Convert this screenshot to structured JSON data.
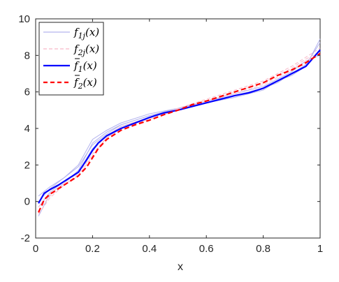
{
  "chart_data": {
    "type": "line",
    "title": "",
    "xlabel": "x",
    "ylabel": "",
    "xlim": [
      0,
      1
    ],
    "ylim": [
      -2,
      10
    ],
    "xticks": [
      "0",
      "0.2",
      "0.4",
      "0.6",
      "0.8",
      "1"
    ],
    "yticks": [
      "-2",
      "0",
      "2",
      "4",
      "6",
      "8",
      "10"
    ],
    "grid": false,
    "legend_position": "top-left",
    "series": [
      {
        "name": "f_{1j}(x)",
        "style": "thin light blue solid (multiple sample curves)",
        "color": "#b3b3ee",
        "x": [
          0.01,
          0.05,
          0.1,
          0.15,
          0.2,
          0.25,
          0.3,
          0.4,
          0.5,
          0.6,
          0.7,
          0.8,
          0.85,
          0.9,
          0.95,
          1.0
        ],
        "samples": [
          [
            -0.8,
            0.4,
            1.0,
            1.7,
            3.2,
            3.8,
            4.2,
            4.7,
            5.0,
            5.4,
            5.8,
            6.2,
            6.6,
            7.0,
            7.5,
            8.7
          ],
          [
            0.3,
            0.8,
            1.3,
            2.0,
            3.4,
            3.9,
            4.3,
            4.8,
            5.1,
            5.5,
            5.9,
            6.3,
            6.7,
            7.1,
            7.7,
            8.0
          ],
          [
            -0.3,
            0.5,
            1.1,
            1.6,
            2.9,
            3.6,
            4.1,
            4.6,
            5.0,
            5.5,
            5.8,
            6.2,
            6.5,
            7.0,
            7.4,
            8.3
          ],
          [
            0.0,
            0.7,
            1.3,
            1.9,
            3.1,
            3.7,
            4.2,
            4.7,
            5.1,
            5.4,
            5.7,
            6.1,
            6.6,
            6.9,
            7.4,
            8.9
          ]
        ]
      },
      {
        "name": "f_{2j}(x)",
        "style": "thin light pink dashed (multiple sample curves)",
        "color": "#f7b8c8",
        "x": [
          0.01,
          0.05,
          0.1,
          0.15,
          0.2,
          0.25,
          0.3,
          0.4,
          0.5,
          0.6,
          0.7,
          0.8,
          0.85,
          0.9,
          0.95,
          1.0
        ],
        "samples": [
          [
            -0.7,
            0.2,
            0.9,
            1.4,
            2.5,
            3.5,
            4.0,
            4.5,
            5.0,
            5.5,
            6.0,
            6.5,
            6.9,
            7.3,
            7.8,
            8.2
          ],
          [
            -0.3,
            0.4,
            1.0,
            1.6,
            2.8,
            3.6,
            4.1,
            4.6,
            5.1,
            5.6,
            6.1,
            6.6,
            7.0,
            7.4,
            7.9,
            8.4
          ],
          [
            -0.5,
            0.3,
            0.9,
            1.5,
            2.6,
            3.5,
            4.0,
            4.6,
            5.0,
            5.5,
            5.9,
            6.4,
            6.8,
            7.2,
            7.7,
            8.1
          ]
        ]
      },
      {
        "name": "̅f_1(x)",
        "style": "solid blue, thick",
        "color": "#0000ff",
        "x": [
          0.01,
          0.03,
          0.05,
          0.08,
          0.1,
          0.15,
          0.18,
          0.2,
          0.22,
          0.25,
          0.3,
          0.35,
          0.4,
          0.45,
          0.5,
          0.55,
          0.6,
          0.65,
          0.7,
          0.75,
          0.8,
          0.85,
          0.9,
          0.95,
          1.0
        ],
        "y": [
          -0.1,
          0.45,
          0.65,
          0.9,
          1.1,
          1.6,
          2.3,
          2.8,
          3.2,
          3.6,
          4.0,
          4.3,
          4.6,
          4.85,
          5.0,
          5.2,
          5.4,
          5.6,
          5.8,
          5.95,
          6.2,
          6.6,
          7.0,
          7.4,
          8.3
        ]
      },
      {
        "name": "̅f_2(x)",
        "style": "dashed red, thick",
        "color": "#ff0000",
        "x": [
          0.01,
          0.03,
          0.05,
          0.08,
          0.1,
          0.15,
          0.18,
          0.2,
          0.22,
          0.25,
          0.3,
          0.35,
          0.4,
          0.45,
          0.5,
          0.55,
          0.6,
          0.65,
          0.7,
          0.75,
          0.8,
          0.85,
          0.9,
          0.95,
          1.0
        ],
        "y": [
          -0.6,
          0.1,
          0.4,
          0.7,
          0.9,
          1.4,
          1.9,
          2.4,
          2.9,
          3.4,
          3.9,
          4.2,
          4.45,
          4.75,
          5.0,
          5.3,
          5.5,
          5.75,
          6.0,
          6.25,
          6.5,
          6.9,
          7.2,
          7.6,
          8.1
        ]
      }
    ]
  },
  "legend": {
    "items": [
      {
        "main": "f",
        "sub": "1j",
        "tail": "(x)",
        "bar": false,
        "color": "#b3b3ee",
        "dash": ""
      },
      {
        "main": "f",
        "sub": "2j",
        "tail": "(x)",
        "bar": false,
        "color": "#f7b8c8",
        "dash": "5,3"
      },
      {
        "main": "f",
        "sub": "1",
        "tail": "(x)",
        "bar": true,
        "color": "#0000ff",
        "dash": ""
      },
      {
        "main": "f",
        "sub": "2",
        "tail": "(x)",
        "bar": true,
        "color": "#ff0000",
        "dash": "6,4"
      }
    ]
  }
}
